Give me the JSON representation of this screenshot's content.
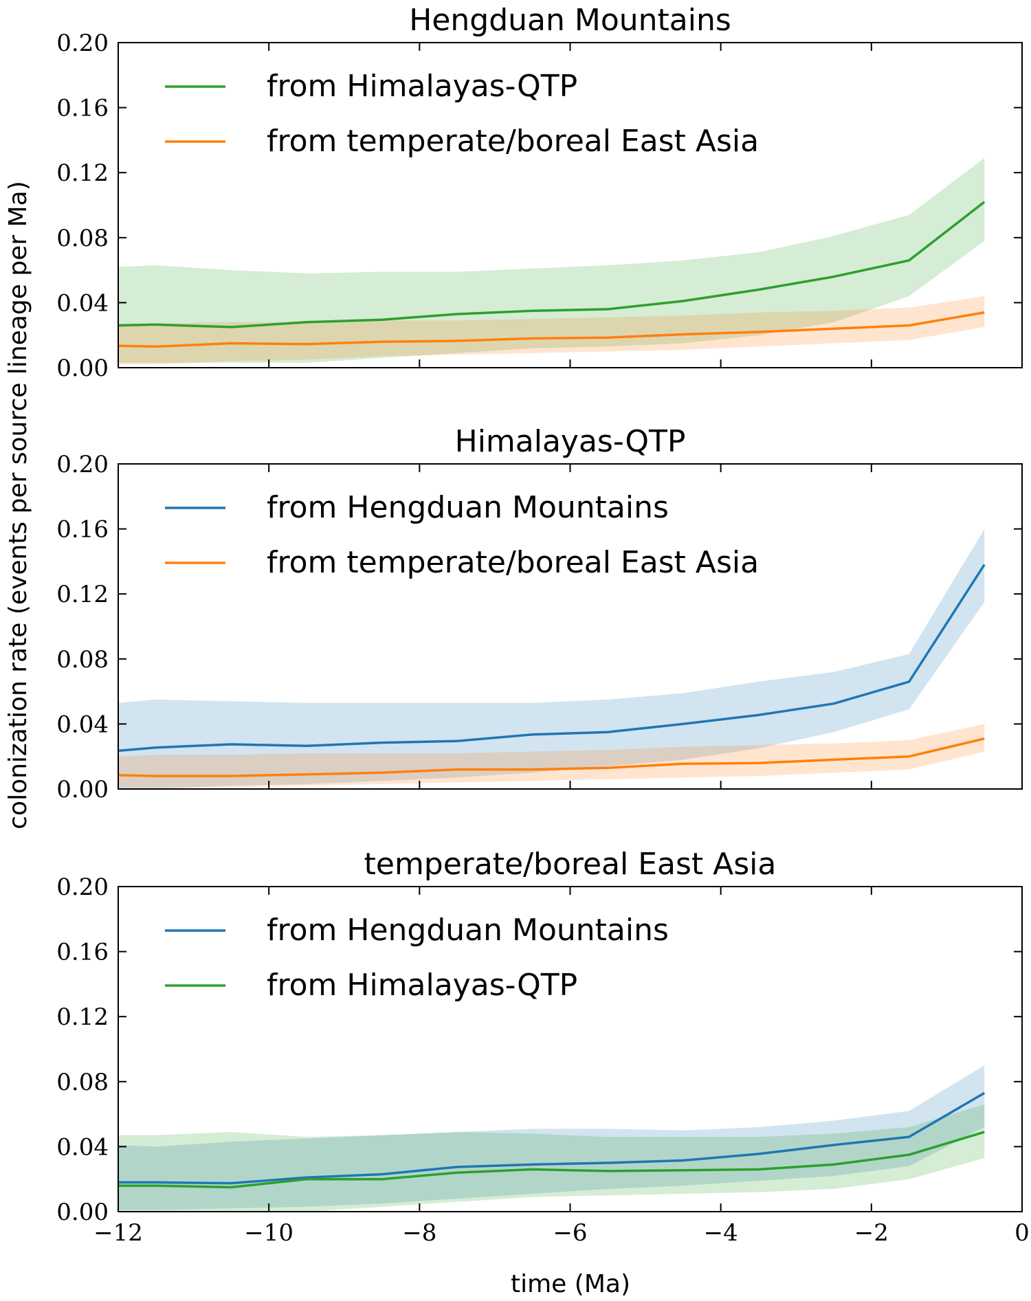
{
  "figure": {
    "ylabel": "colonization rate (events per source lineage per Ma)",
    "xlabel": "time (Ma)"
  },
  "colors": {
    "blue": "#1f77b4",
    "orange": "#ff7f0e",
    "green": "#2ca02c"
  },
  "chart_data": [
    {
      "type": "line",
      "title": "Hengduan Mountains",
      "xlim": [
        -12,
        0
      ],
      "ylim": [
        0,
        0.2
      ],
      "xticks": [
        -12,
        -10,
        -8,
        -6,
        -4,
        -2,
        0
      ],
      "yticks": [
        0.0,
        0.04,
        0.08,
        0.12,
        0.16,
        0.2
      ],
      "xticklabels": [
        "−12",
        "−10",
        "−8",
        "−6",
        "−4",
        "−2",
        "0"
      ],
      "yticklabels": [
        "0.00",
        "0.04",
        "0.08",
        "0.12",
        "0.16",
        "0.20"
      ],
      "legend_position": "top-left",
      "x": [
        -12,
        -11.5,
        -10.5,
        -9.5,
        -8.5,
        -7.5,
        -6.5,
        -5.5,
        -4.5,
        -3.5,
        -2.5,
        -1.5,
        -0.5
      ],
      "series": [
        {
          "name": "from Himalayas-QTP",
          "color": "#2ca02c",
          "values": [
            0.026,
            0.0265,
            0.025,
            0.028,
            0.0295,
            0.033,
            0.035,
            0.036,
            0.041,
            0.048,
            0.056,
            0.066,
            0.102
          ],
          "lower": [
            0.003,
            0.003,
            0.003,
            0.003,
            0.006,
            0.009,
            0.012,
            0.013,
            0.015,
            0.02,
            0.028,
            0.044,
            0.078
          ],
          "upper": [
            0.062,
            0.063,
            0.06,
            0.058,
            0.059,
            0.059,
            0.061,
            0.063,
            0.066,
            0.071,
            0.081,
            0.094,
            0.129
          ]
        },
        {
          "name": "from temperate/boreal East Asia",
          "color": "#ff7f0e",
          "values": [
            0.0135,
            0.013,
            0.015,
            0.0145,
            0.016,
            0.0165,
            0.018,
            0.0185,
            0.0205,
            0.022,
            0.024,
            0.026,
            0.034
          ],
          "lower": [
            0.002,
            0.002,
            0.004,
            0.005,
            0.007,
            0.008,
            0.009,
            0.01,
            0.011,
            0.013,
            0.015,
            0.017,
            0.025
          ],
          "upper": [
            0.027,
            0.027,
            0.028,
            0.028,
            0.029,
            0.029,
            0.03,
            0.031,
            0.032,
            0.034,
            0.035,
            0.037,
            0.044
          ]
        }
      ]
    },
    {
      "type": "line",
      "title": "Himalayas-QTP",
      "xlim": [
        -12,
        0
      ],
      "ylim": [
        0,
        0.2
      ],
      "xticks": [
        -12,
        -10,
        -8,
        -6,
        -4,
        -2,
        0
      ],
      "yticks": [
        0.0,
        0.04,
        0.08,
        0.12,
        0.16,
        0.2
      ],
      "xticklabels": [
        "−12",
        "−10",
        "−8",
        "−6",
        "−4",
        "−2",
        "0"
      ],
      "yticklabels": [
        "0.00",
        "0.04",
        "0.08",
        "0.12",
        "0.16",
        "0.20"
      ],
      "legend_position": "top-left",
      "x": [
        -12,
        -11.5,
        -10.5,
        -9.5,
        -8.5,
        -7.5,
        -6.5,
        -5.5,
        -4.5,
        -3.5,
        -2.5,
        -1.5,
        -0.5
      ],
      "series": [
        {
          "name": "from Hengduan Mountains",
          "color": "#1f77b4",
          "values": [
            0.0235,
            0.0255,
            0.0275,
            0.0265,
            0.0285,
            0.0295,
            0.0335,
            0.035,
            0.04,
            0.0455,
            0.0525,
            0.066,
            0.138
          ],
          "lower": [
            0.0,
            0.0,
            0.002,
            0.003,
            0.005,
            0.007,
            0.01,
            0.014,
            0.018,
            0.025,
            0.035,
            0.049,
            0.115
          ],
          "upper": [
            0.053,
            0.055,
            0.054,
            0.053,
            0.053,
            0.053,
            0.053,
            0.055,
            0.059,
            0.066,
            0.072,
            0.083,
            0.16
          ]
        },
        {
          "name": "from temperate/boreal East Asia",
          "color": "#ff7f0e",
          "values": [
            0.0085,
            0.008,
            0.008,
            0.009,
            0.01,
            0.012,
            0.012,
            0.013,
            0.0155,
            0.016,
            0.018,
            0.02,
            0.031
          ],
          "lower": [
            0.001,
            0.001,
            0.001,
            0.002,
            0.003,
            0.004,
            0.005,
            0.006,
            0.007,
            0.008,
            0.01,
            0.012,
            0.023
          ],
          "upper": [
            0.02,
            0.021,
            0.021,
            0.022,
            0.022,
            0.022,
            0.023,
            0.024,
            0.026,
            0.027,
            0.028,
            0.03,
            0.04
          ]
        }
      ]
    },
    {
      "type": "line",
      "title": "temperate/boreal East Asia",
      "xlim": [
        -12,
        0
      ],
      "ylim": [
        0,
        0.2
      ],
      "xticks": [
        -12,
        -10,
        -8,
        -6,
        -4,
        -2,
        0
      ],
      "yticks": [
        0.0,
        0.04,
        0.08,
        0.12,
        0.16,
        0.2
      ],
      "xticklabels": [
        "−12",
        "−10",
        "−8",
        "−6",
        "−4",
        "−2",
        "0"
      ],
      "yticklabels": [
        "0.00",
        "0.04",
        "0.08",
        "0.12",
        "0.16",
        "0.20"
      ],
      "legend_position": "top-left",
      "x": [
        -12,
        -11.5,
        -10.5,
        -9.5,
        -8.5,
        -7.5,
        -6.5,
        -5.5,
        -4.5,
        -3.5,
        -2.5,
        -1.5,
        -0.5
      ],
      "series": [
        {
          "name": "from Hengduan Mountains",
          "color": "#1f77b4",
          "values": [
            0.018,
            0.018,
            0.0175,
            0.021,
            0.023,
            0.0275,
            0.029,
            0.03,
            0.0315,
            0.0355,
            0.041,
            0.046,
            0.073
          ],
          "lower": [
            0.001,
            0.001,
            0.002,
            0.003,
            0.005,
            0.008,
            0.011,
            0.014,
            0.016,
            0.019,
            0.022,
            0.028,
            0.052
          ],
          "upper": [
            0.041,
            0.04,
            0.043,
            0.045,
            0.047,
            0.049,
            0.051,
            0.051,
            0.05,
            0.052,
            0.056,
            0.062,
            0.09
          ]
        },
        {
          "name": "from Himalayas-QTP",
          "color": "#2ca02c",
          "values": [
            0.016,
            0.016,
            0.015,
            0.02,
            0.02,
            0.024,
            0.026,
            0.025,
            0.0255,
            0.026,
            0.029,
            0.035,
            0.049
          ],
          "lower": [
            0.0,
            0.0,
            0.0,
            0.0,
            0.003,
            0.006,
            0.009,
            0.01,
            0.011,
            0.012,
            0.014,
            0.02,
            0.033
          ],
          "upper": [
            0.047,
            0.047,
            0.049,
            0.046,
            0.047,
            0.049,
            0.048,
            0.046,
            0.046,
            0.046,
            0.048,
            0.052,
            0.066
          ]
        }
      ]
    }
  ]
}
